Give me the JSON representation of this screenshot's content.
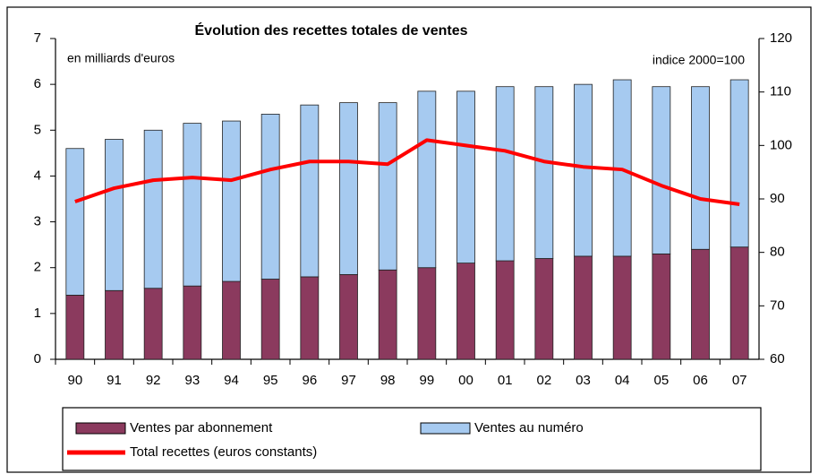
{
  "chart_data": {
    "type": "bar",
    "stacked": true,
    "title": "Évolution des recettes totales de ventes",
    "y_label": "en milliards d'euros",
    "y2_label": "indice 2000=100",
    "categories": [
      "90",
      "91",
      "92",
      "93",
      "94",
      "95",
      "96",
      "97",
      "98",
      "99",
      "00",
      "01",
      "02",
      "03",
      "04",
      "05",
      "06",
      "07"
    ],
    "series": [
      {
        "name": "Ventes par abonnement",
        "type": "bar",
        "color": "#8b3a5e",
        "values": [
          1.4,
          1.5,
          1.55,
          1.6,
          1.7,
          1.75,
          1.8,
          1.85,
          1.95,
          2.0,
          2.1,
          2.15,
          2.2,
          2.25,
          2.25,
          2.3,
          2.4,
          2.45
        ]
      },
      {
        "name": "Ventes au numéro",
        "type": "bar",
        "color": "#a6caf0",
        "values": [
          3.2,
          3.3,
          3.45,
          3.55,
          3.5,
          3.6,
          3.75,
          3.75,
          3.65,
          3.85,
          3.75,
          3.8,
          3.75,
          3.75,
          3.85,
          3.65,
          3.55,
          3.65
        ]
      },
      {
        "name": "Total recettes (euros constants)",
        "type": "line",
        "axis": "y2",
        "color": "#ff0000",
        "values": [
          89.5,
          92,
          93.5,
          94,
          93.5,
          95.5,
          97,
          97,
          96.5,
          101,
          100,
          99,
          97,
          96,
          95.5,
          92.5,
          90,
          89
        ]
      }
    ],
    "ylim": [
      0,
      7
    ],
    "yticks": [
      0,
      1,
      2,
      3,
      4,
      5,
      6,
      7
    ],
    "y2lim": [
      60,
      120
    ],
    "y2ticks": [
      60,
      70,
      80,
      90,
      100,
      110,
      120
    ]
  }
}
